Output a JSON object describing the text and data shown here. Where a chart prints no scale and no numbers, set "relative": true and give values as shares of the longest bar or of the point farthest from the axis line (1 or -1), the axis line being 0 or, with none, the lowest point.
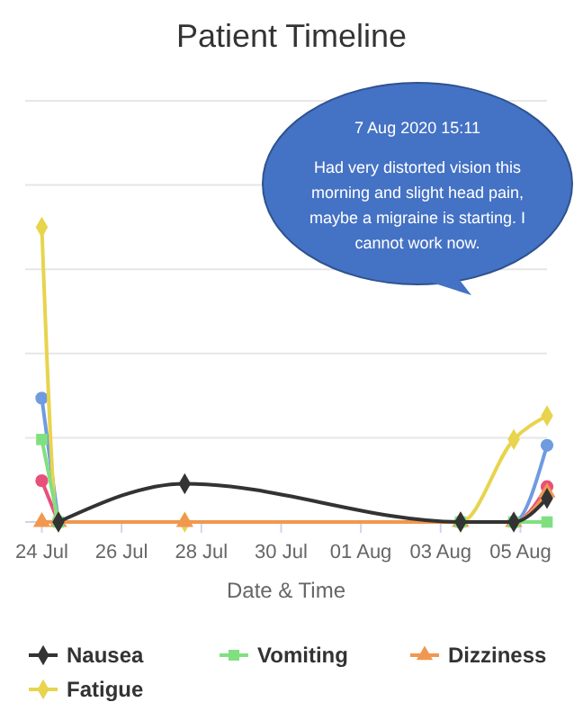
{
  "chart_data": {
    "type": "line",
    "title": "Patient Timeline",
    "xlabel": "Date & Time",
    "relative": true,
    "grid": "y",
    "legend": "bottom",
    "annotations": [
      "7 Aug 2020 15:11",
      "Had very distorted vision this morning and slight head pain, maybe a migraine is starting. I cannot work now."
    ],
    "xlim": [
      "2020-07-23T14:00",
      "2020-08-05T16:00"
    ],
    "xticks": [
      {
        "value": "2020-07-24",
        "label": "24 Jul"
      },
      {
        "value": "2020-07-26",
        "label": "26 Jul"
      },
      {
        "value": "2020-07-28",
        "label": "28 Jul"
      },
      {
        "value": "2020-07-30",
        "label": "30 Jul"
      },
      {
        "value": "2020-08-01",
        "label": "01 Aug"
      },
      {
        "value": "2020-08-03",
        "label": "03 Aug"
      },
      {
        "value": "2020-08-05",
        "label": "05 Aug"
      }
    ],
    "x": [
      "2020-07-24T00:00",
      "2020-07-24T10:00",
      "2020-07-27T14:00",
      "2020-08-03T12:00",
      "2020-08-04T20:00",
      "2020-08-05T16:00"
    ],
    "series": [
      {
        "name": "Nausea",
        "color": "#333333",
        "marker": "diamond",
        "values": [
          null,
          0,
          0.13,
          0,
          0,
          0.08
        ]
      },
      {
        "name": "Vomiting",
        "color": "#80e080",
        "marker": "square",
        "values": [
          0.28,
          0,
          null,
          0,
          0,
          0
        ]
      },
      {
        "name": "Dizziness",
        "color": "#f09850",
        "marker": "triangle",
        "values": [
          0,
          0,
          0,
          0,
          0,
          0.1
        ]
      },
      {
        "name": "Fatigue",
        "color": "#e8d44d",
        "marker": "diamond",
        "values": [
          1,
          0,
          0,
          0,
          0.28,
          0.36
        ]
      },
      {
        "color": "#6f9be0",
        "marker": "circle",
        "values": [
          0.42,
          0,
          null,
          0,
          0,
          0.26
        ]
      },
      {
        "color": "#e8507a",
        "marker": "circle",
        "values": [
          0.14,
          0,
          null,
          0,
          0,
          0.12
        ]
      }
    ]
  }
}
